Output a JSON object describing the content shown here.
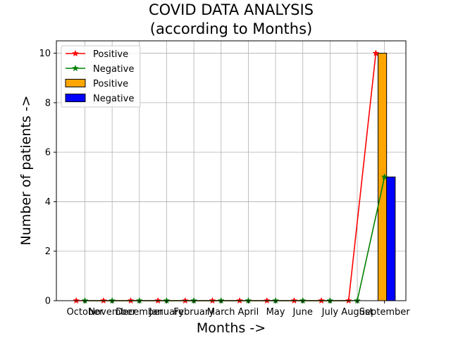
{
  "chart_data": {
    "type": "bar",
    "title": "COVID DATA ANALYSIS",
    "subtitle": "(according to Months)",
    "xlabel": "Months ->",
    "ylabel": "Number of patients ->",
    "categories": [
      "October",
      "November",
      "December",
      "January",
      "February",
      "March",
      "April",
      "May",
      "June",
      "July",
      "August",
      "September"
    ],
    "ylim": [
      0,
      10.5
    ],
    "yticks": [
      0,
      2,
      4,
      6,
      8,
      10
    ],
    "grid": true,
    "legend_position": "top-left",
    "bar_series": [
      {
        "name": "Positive",
        "values": [
          0,
          0,
          0,
          0,
          0,
          0,
          0,
          0,
          0,
          0,
          0,
          10
        ],
        "color": "#ffa500"
      },
      {
        "name": "Negative",
        "values": [
          0,
          0,
          0,
          0,
          0,
          0,
          0,
          0,
          0,
          0,
          0,
          5
        ],
        "color": "#0000ff"
      }
    ],
    "line_series": [
      {
        "name": "Positive",
        "values": [
          0,
          0,
          0,
          0,
          0,
          0,
          0,
          0,
          0,
          0,
          0,
          10
        ],
        "color": "#ff0000",
        "marker": "star"
      },
      {
        "name": "Negative",
        "values": [
          0,
          0,
          0,
          0,
          0,
          0,
          0,
          0,
          0,
          0,
          0,
          5
        ],
        "color": "#008000",
        "marker": "star"
      }
    ]
  }
}
